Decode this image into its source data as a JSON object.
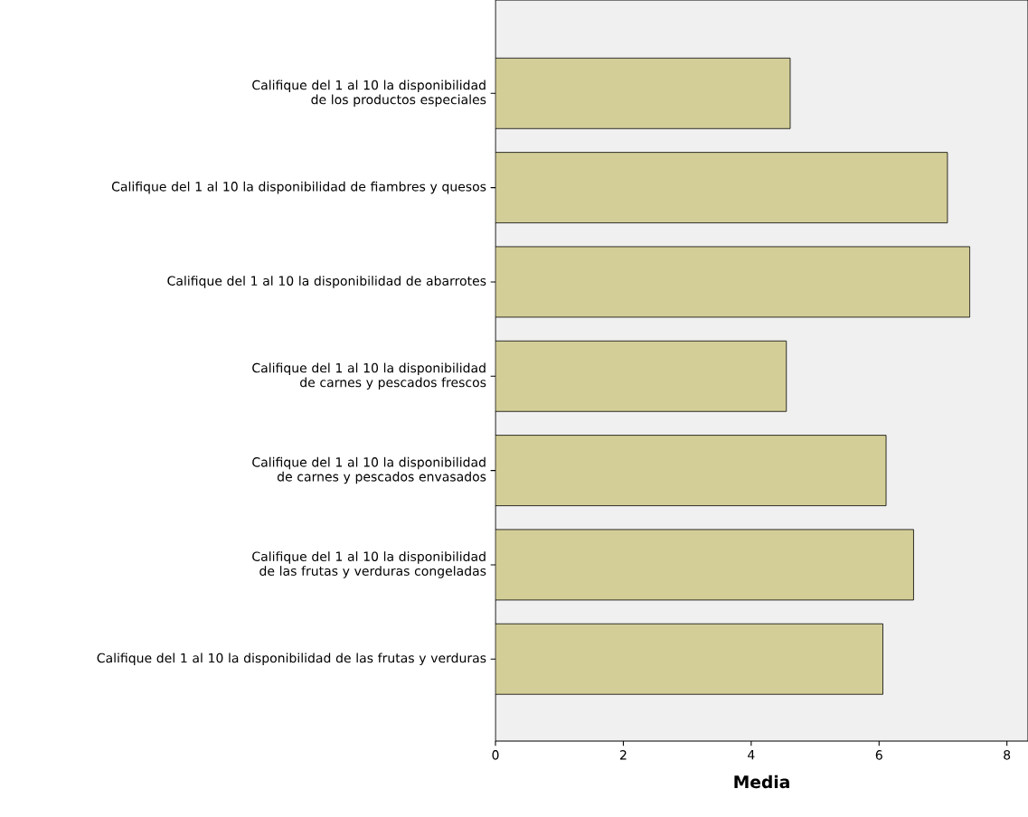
{
  "chart_data": {
    "type": "bar",
    "orientation": "horizontal",
    "xlabel": "Media",
    "categories": [
      "Califique del 1 al 10 la disponibilidad de los productos especiales",
      "Califique del 1 al 10 la disponibilidad de fiambres y quesos",
      "Califique del 1 al 10 la disponibilidad de abarrotes",
      "Califique del 1 al 10 la disponibilidad de carnes y pescados frescos",
      "Califique del 1 al 10 la disponibilidad de carnes y pescados envasados",
      "Califique del 1 al 10 la disponibilidad de las frutas y verduras congeladas",
      "Califique del 1 al 10 la disponibilidad de las frutas y verduras"
    ],
    "values": [
      4.61,
      7.07,
      7.42,
      4.55,
      6.11,
      6.54,
      6.06
    ],
    "color": "#d3ce97",
    "xlim": [
      0,
      8.33
    ],
    "xticks": [
      0,
      2,
      4,
      6,
      8
    ]
  }
}
